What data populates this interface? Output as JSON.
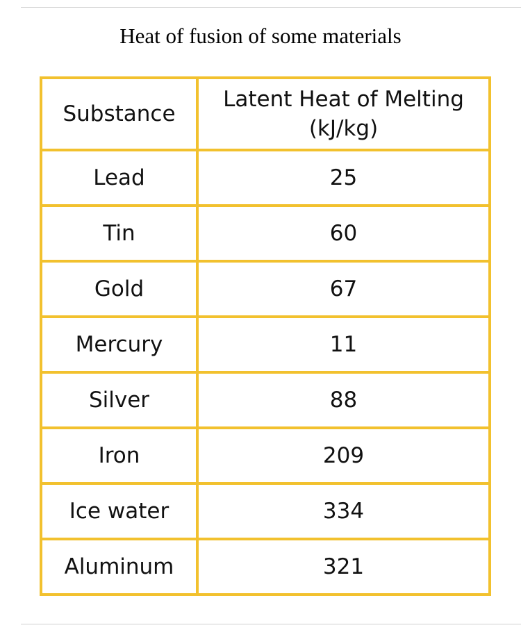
{
  "chart_data": {
    "type": "table",
    "title": "Heat of fusion of some materials",
    "columns": [
      "Substance",
      "Latent Heat of Melting (kJ/kg)"
    ],
    "header": {
      "substance": "Substance",
      "latent_heat_line1": "Latent Heat of Melting",
      "latent_heat_line2": "(kJ/kg)"
    },
    "rows": [
      {
        "substance": "Lead",
        "value": "25"
      },
      {
        "substance": "Tin",
        "value": "60"
      },
      {
        "substance": "Gold",
        "value": "67"
      },
      {
        "substance": "Mercury",
        "value": "11"
      },
      {
        "substance": "Silver",
        "value": "88"
      },
      {
        "substance": "Iron",
        "value": "209"
      },
      {
        "substance": "Ice water",
        "value": "334"
      },
      {
        "substance": "Aluminum",
        "value": "321"
      }
    ]
  },
  "colors": {
    "table_border": "#f2c12e",
    "text": "#111111",
    "page_background": "#ffffff"
  }
}
